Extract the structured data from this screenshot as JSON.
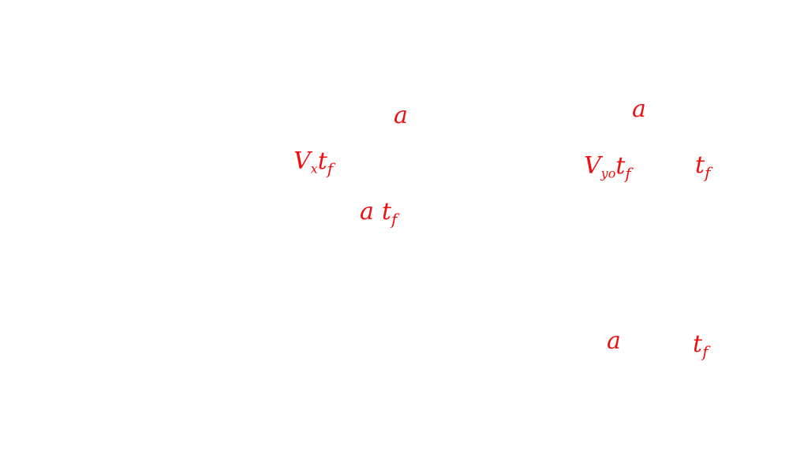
{
  "ink_color": "#ee1111",
  "annotations": {
    "a_top_mid": {
      "text": "a"
    },
    "vx_tf": {
      "base": "V",
      "sub1": "x",
      "t": "t",
      "sub2": "f"
    },
    "a_tf_mid": {
      "a": "a",
      "t": "t",
      "sub": "f"
    },
    "a_top_right": {
      "text": "a"
    },
    "vyo_tf": {
      "base": "V",
      "sub1": "yo",
      "t": "t",
      "sub2": "f"
    },
    "tf_right": {
      "t": "t",
      "sub": "f"
    },
    "a_bottom_right": {
      "text": "a"
    },
    "tf_bottom_right": {
      "t": "t",
      "sub": "f"
    }
  }
}
